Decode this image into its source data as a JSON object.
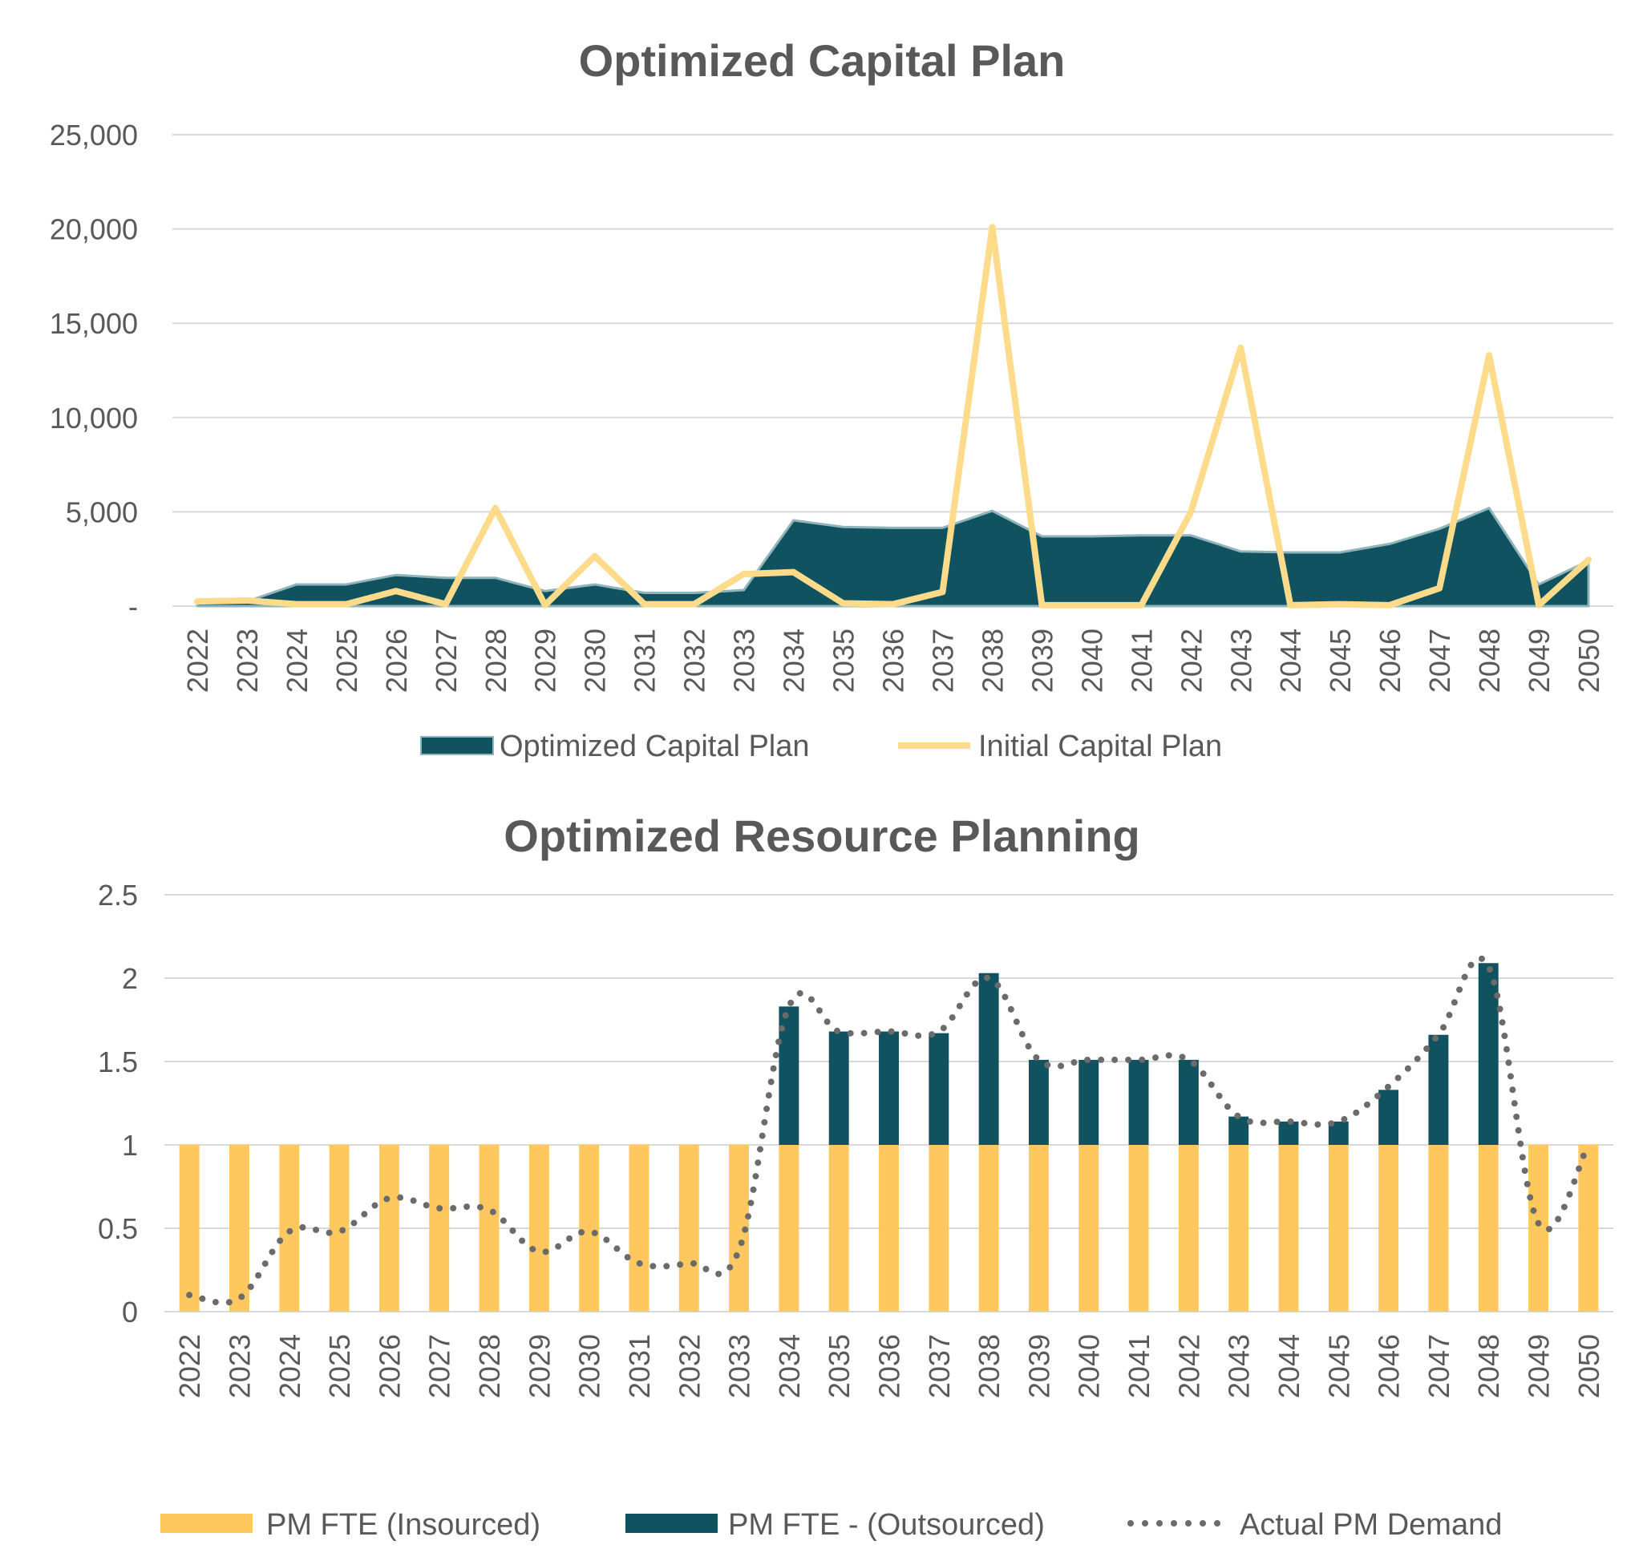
{
  "chart_data": [
    {
      "type": "area",
      "title": "Optimized Capital Plan",
      "xlabel": "",
      "ylabel": "",
      "categories": [
        "2022",
        "2023",
        "2024",
        "2025",
        "2026",
        "2027",
        "2028",
        "2029",
        "2030",
        "2031",
        "2032",
        "2033",
        "2034",
        "2035",
        "2036",
        "2037",
        "2038",
        "2039",
        "2040",
        "2041",
        "2042",
        "2043",
        "2044",
        "2045",
        "2046",
        "2047",
        "2048",
        "2049",
        "2050"
      ],
      "ylim": [
        0,
        25000
      ],
      "yticks": [
        {
          "value": 0,
          "label": "-"
        },
        {
          "value": 5000,
          "label": "5,000"
        },
        {
          "value": 10000,
          "label": "10,000"
        },
        {
          "value": 15000,
          "label": "15,000"
        },
        {
          "value": 20000,
          "label": "20,000"
        },
        {
          "value": 25000,
          "label": "25,000"
        }
      ],
      "grid": true,
      "legend_position": "bottom",
      "series": [
        {
          "name": "Optimized Capital Plan",
          "kind": "area",
          "color": "#10525f",
          "values": [
            200,
            250,
            1150,
            1150,
            1650,
            1500,
            1500,
            800,
            1150,
            700,
            700,
            850,
            4550,
            4200,
            4150,
            4150,
            5050,
            3700,
            3700,
            3750,
            3750,
            2900,
            2850,
            2850,
            3300,
            4100,
            5200,
            1150,
            2400
          ]
        },
        {
          "name": "Initial Capital Plan",
          "kind": "line",
          "color": "#fedb8b",
          "values": [
            250,
            300,
            100,
            100,
            800,
            100,
            5200,
            50,
            2650,
            100,
            100,
            1700,
            1800,
            150,
            100,
            750,
            20100,
            50,
            50,
            50,
            5000,
            13700,
            50,
            100,
            50,
            950,
            13300,
            50,
            2450
          ]
        }
      ]
    },
    {
      "type": "bar",
      "title": "Optimized Resource Planning",
      "xlabel": "",
      "ylabel": "",
      "categories": [
        "2022",
        "2023",
        "2024",
        "2025",
        "2026",
        "2027",
        "2028",
        "2029",
        "2030",
        "2031",
        "2032",
        "2033",
        "2034",
        "2035",
        "2036",
        "2037",
        "2038",
        "2039",
        "2040",
        "2041",
        "2042",
        "2043",
        "2044",
        "2045",
        "2046",
        "2047",
        "2048",
        "2049",
        "2050"
      ],
      "ylim": [
        0,
        2.5
      ],
      "yticks": [
        {
          "value": 0,
          "label": "0"
        },
        {
          "value": 0.5,
          "label": "0.5"
        },
        {
          "value": 1,
          "label": "1"
        },
        {
          "value": 1.5,
          "label": "1.5"
        },
        {
          "value": 2,
          "label": "2"
        },
        {
          "value": 2.5,
          "label": "2.5"
        }
      ],
      "grid": true,
      "stacked": true,
      "legend_position": "bottom",
      "series": [
        {
          "name": "PM FTE (Insourced)",
          "kind": "bar",
          "color": "#fec85e",
          "values": [
            1,
            1,
            1,
            1,
            1,
            1,
            1,
            1,
            1,
            1,
            1,
            1,
            1,
            1,
            1,
            1,
            1,
            1,
            1,
            1,
            1,
            1,
            1,
            1,
            1,
            1,
            1,
            1,
            1
          ]
        },
        {
          "name": "PM FTE - (Outsourced)",
          "kind": "bar",
          "color": "#10525f",
          "values": [
            0,
            0,
            0,
            0,
            0,
            0,
            0,
            0,
            0,
            0,
            0,
            0,
            0.83,
            0.68,
            0.68,
            0.67,
            1.03,
            0.51,
            0.51,
            0.51,
            0.51,
            0.17,
            0.14,
            0.14,
            0.33,
            0.66,
            1.09,
            0,
            0
          ]
        },
        {
          "name": "Actual PM Demand",
          "kind": "dotted-line",
          "color": "#6b6b6b",
          "values": [
            0.1,
            0.08,
            0.48,
            0.48,
            0.68,
            0.62,
            0.61,
            0.36,
            0.48,
            0.29,
            0.29,
            0.37,
            1.83,
            1.68,
            1.68,
            1.68,
            2.0,
            1.51,
            1.51,
            1.51,
            1.51,
            1.17,
            1.14,
            1.14,
            1.35,
            1.66,
            2.07,
            0.53,
            1.0
          ]
        }
      ]
    }
  ]
}
